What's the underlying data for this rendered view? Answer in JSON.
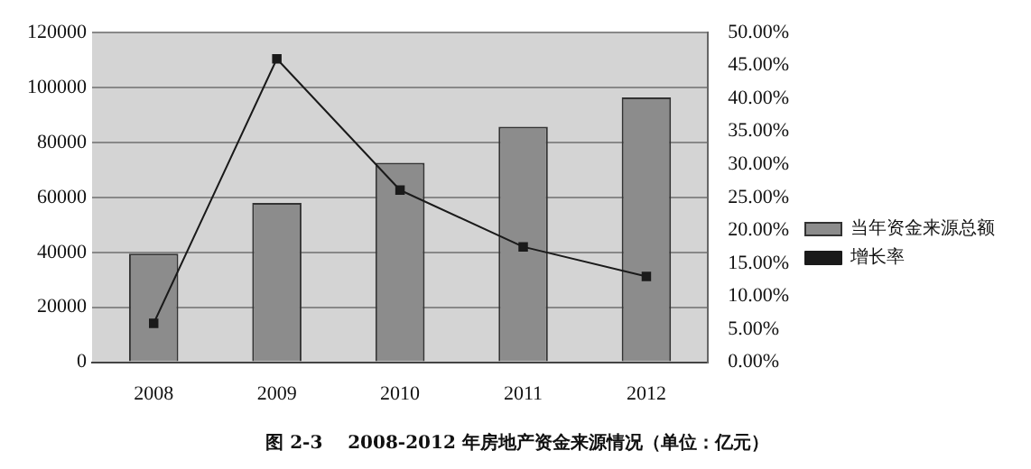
{
  "chart_data": {
    "type": "bar",
    "title": "图 2-3    2008-2012 年房地产资金来源情况（单位：亿元）",
    "categories": [
      "2008",
      "2009",
      "2010",
      "2011",
      "2012"
    ],
    "series": [
      {
        "name": "当年资金来源总额",
        "color": "#8c8c8c",
        "values": [
          39500,
          58000,
          72600,
          85700,
          96400
        ]
      },
      {
        "name": "增长率",
        "type": "line",
        "axis": "y2",
        "color": "#1a1a1a",
        "values": [
          5.9,
          46.0,
          26.1,
          17.5,
          13.0
        ]
      }
    ],
    "ylim": [
      0,
      120000
    ],
    "yticks": [
      0,
      20000,
      40000,
      60000,
      80000,
      100000,
      120000
    ],
    "y2lim": [
      0,
      50
    ],
    "y2ticks": [
      {
        "value": 0,
        "label": "0.00%"
      },
      {
        "value": 5,
        "label": "5.00%"
      },
      {
        "value": 10,
        "label": "10.00%"
      },
      {
        "value": 15,
        "label": "15.00%"
      },
      {
        "value": 20,
        "label": "20.00%"
      },
      {
        "value": 25,
        "label": "25.00%"
      },
      {
        "value": 30,
        "label": "30.00%"
      },
      {
        "value": 35,
        "label": "35.00%"
      },
      {
        "value": 40,
        "label": "40.00%"
      },
      {
        "value": 45,
        "label": "45.00%"
      },
      {
        "value": 50,
        "label": "50.00%"
      }
    ],
    "grid": "y",
    "legend": "right",
    "marker": "square",
    "line_style": "solid"
  }
}
